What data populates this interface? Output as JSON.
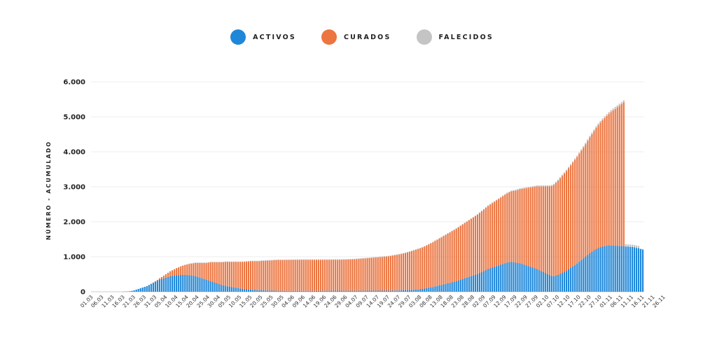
{
  "chart_data": {
    "type": "bar",
    "stacked": true,
    "ylabel": "NÚMERO - ACUMULADO",
    "ylim": [
      0,
      6000
    ],
    "yticks": [
      "0",
      "1.000",
      "2.000",
      "3.000",
      "4.000",
      "5.000",
      "6.000"
    ],
    "grid": true,
    "legend_position": "top-center",
    "xticks": [
      "01.03",
      "06.03",
      "11.03",
      "16.03",
      "21.03",
      "26.03",
      "31.03",
      "05.04",
      "10.04",
      "15.04",
      "20.04",
      "25.04",
      "30.04",
      "05.05",
      "10.05",
      "15.05",
      "20.05",
      "25.05",
      "30.05",
      "04.06",
      "09.06",
      "14.06",
      "19.06",
      "24.06",
      "29.06",
      "04.07",
      "09.07",
      "14.07",
      "19.07",
      "24.07",
      "29.07",
      "03.08",
      "08.08",
      "13.08",
      "18.08",
      "23.08",
      "28.08",
      "02.09",
      "07.09",
      "12.09",
      "17.09",
      "22.09",
      "27.09",
      "02.10",
      "07.10",
      "12.10",
      "17.10",
      "22.10",
      "27.10",
      "01.11",
      "06.11",
      "11.11",
      "16.11",
      "21.11",
      "26.11"
    ],
    "series": [
      {
        "name": "ACTIVOS",
        "color": "#1f87d8",
        "values": [
          0,
          0,
          0,
          0,
          0,
          0,
          0,
          0,
          0,
          0,
          0,
          0,
          0,
          0,
          0,
          3,
          5,
          8,
          15,
          25,
          40,
          60,
          80,
          100,
          120,
          140,
          160,
          190,
          220,
          250,
          280,
          310,
          340,
          360,
          380,
          400,
          420,
          440,
          450,
          460,
          470,
          475,
          480,
          482,
          480,
          478,
          470,
          460,
          450,
          440,
          420,
          400,
          380,
          360,
          340,
          320,
          300,
          280,
          260,
          240,
          220,
          200,
          185,
          170,
          155,
          140,
          130,
          120,
          110,
          100,
          90,
          80,
          75,
          70,
          65,
          60,
          55,
          50,
          45,
          42,
          40,
          38,
          36,
          34,
          32,
          30,
          30,
          28,
          28,
          26,
          26,
          25,
          25,
          24,
          24,
          24,
          24,
          24,
          25,
          25,
          25,
          25,
          25,
          26,
          26,
          26,
          26,
          26,
          27,
          27,
          27,
          27,
          27,
          28,
          28,
          28,
          28,
          28,
          28,
          28,
          28,
          28,
          28,
          28,
          28,
          28,
          28,
          28,
          28,
          28,
          28,
          29,
          29,
          29,
          29,
          30,
          30,
          30,
          31,
          31,
          32,
          32,
          33,
          34,
          35,
          36,
          38,
          40,
          42,
          45,
          48,
          52,
          56,
          60,
          65,
          70,
          80,
          90,
          100,
          110,
          120,
          135,
          150,
          165,
          180,
          195,
          210,
          225,
          240,
          255,
          270,
          285,
          300,
          320,
          340,
          360,
          380,
          400,
          420,
          440,
          460,
          480,
          500,
          530,
          560,
          590,
          620,
          650,
          670,
          690,
          710,
          730,
          750,
          770,
          790,
          810,
          830,
          840,
          850,
          840,
          830,
          820,
          810,
          790,
          770,
          750,
          730,
          710,
          690,
          670,
          650,
          620,
          590,
          560,
          530,
          500,
          470,
          450,
          440,
          460,
          480,
          510,
          540,
          570,
          600,
          640,
          680,
          720,
          760,
          800,
          850,
          900,
          950,
          1000,
          1050,
          1100,
          1140,
          1180,
          1220,
          1250,
          1270,
          1290,
          1300,
          1310,
          1320,
          1325,
          1320,
          1315,
          1310,
          1305,
          1300,
          1300,
          1295,
          1290,
          1285,
          1280,
          1270,
          1255,
          1240,
          1225,
          1210
        ]
      },
      {
        "name": "CURADOS",
        "color": "#ec7540",
        "values": [
          0,
          0,
          0,
          0,
          0,
          0,
          0,
          0,
          0,
          0,
          0,
          0,
          0,
          0,
          0,
          0,
          0,
          0,
          0,
          0,
          0,
          0,
          0,
          0,
          0,
          0,
          2,
          4,
          8,
          12,
          20,
          30,
          45,
          60,
          80,
          100,
          120,
          140,
          160,
          180,
          200,
          220,
          240,
          260,
          280,
          300,
          320,
          340,
          360,
          380,
          400,
          420,
          440,
          460,
          480,
          510,
          540,
          560,
          580,
          600,
          620,
          640,
          660,
          680,
          700,
          710,
          720,
          730,
          740,
          750,
          760,
          770,
          780,
          790,
          800,
          810,
          815,
          820,
          825,
          830,
          840,
          845,
          850,
          855,
          860,
          865,
          870,
          875,
          880,
          880,
          880,
          882,
          882,
          884,
          884,
          885,
          885,
          885,
          886,
          886,
          886,
          886,
          886,
          886,
          886,
          886,
          886,
          886,
          886,
          886,
          886,
          886,
          886,
          886,
          886,
          887,
          887,
          887,
          888,
          889,
          890,
          892,
          895,
          898,
          900,
          905,
          910,
          915,
          920,
          925,
          930,
          935,
          940,
          945,
          950,
          955,
          960,
          965,
          970,
          975,
          980,
          990,
          1000,
          1010,
          1020,
          1030,
          1040,
          1050,
          1065,
          1080,
          1095,
          1110,
          1125,
          1140,
          1155,
          1170,
          1185,
          1200,
          1220,
          1240,
          1260,
          1280,
          1300,
          1320,
          1340,
          1360,
          1380,
          1400,
          1420,
          1440,
          1460,
          1480,
          1500,
          1520,
          1540,
          1560,
          1580,
          1600,
          1620,
          1640,
          1660,
          1680,
          1700,
          1720,
          1740,
          1760,
          1780,
          1800,
          1820,
          1840,
          1860,
          1880,
          1900,
          1920,
          1940,
          1960,
          1980,
          2000,
          2020,
          2040,
          2060,
          2090,
          2120,
          2150,
          2180,
          2210,
          2240,
          2270,
          2300,
          2330,
          2360,
          2390,
          2420,
          2450,
          2480,
          2510,
          2540,
          2570,
          2610,
          2650,
          2690,
          2730,
          2770,
          2810,
          2850,
          2890,
          2930,
          2970,
          3010,
          3050,
          3090,
          3130,
          3170,
          3210,
          3260,
          3310,
          3360,
          3410,
          3460,
          3510,
          3560,
          3610,
          3660,
          3710,
          3760,
          3810,
          3860,
          3910,
          3960,
          4010,
          4060,
          4110
        ]
      },
      {
        "name": "FALECIDOS",
        "color": "#c4c4c4",
        "values": [
          0,
          0,
          0,
          0,
          0,
          0,
          0,
          0,
          0,
          0,
          0,
          0,
          0,
          0,
          0,
          0,
          0,
          0,
          0,
          0,
          0,
          0,
          0,
          0,
          0,
          0,
          0,
          0,
          0,
          0,
          0,
          1,
          2,
          3,
          4,
          5,
          6,
          7,
          8,
          9,
          10,
          11,
          12,
          13,
          14,
          15,
          15,
          15,
          15,
          15,
          15,
          15,
          15,
          15,
          15,
          15,
          15,
          15,
          15,
          15,
          15,
          15,
          15,
          15,
          15,
          15,
          15,
          15,
          15,
          15,
          15,
          15,
          15,
          15,
          15,
          15,
          15,
          15,
          15,
          15,
          15,
          15,
          15,
          15,
          15,
          15,
          15,
          15,
          15,
          15,
          15,
          15,
          15,
          15,
          15,
          15,
          15,
          15,
          15,
          15,
          15,
          15,
          15,
          15,
          15,
          15,
          15,
          15,
          15,
          15,
          15,
          15,
          15,
          15,
          15,
          15,
          15,
          15,
          15,
          15,
          15,
          15,
          15,
          15,
          15,
          15,
          15,
          15,
          15,
          15,
          15,
          15,
          15,
          15,
          15,
          15,
          15,
          15,
          15,
          15,
          15,
          15,
          15,
          15,
          15,
          15,
          15,
          15,
          15,
          15,
          15,
          15,
          15,
          15,
          15,
          15,
          15,
          15,
          15,
          15,
          15,
          15,
          15,
          15,
          15,
          15,
          15,
          15,
          15,
          15,
          15,
          15,
          16,
          16,
          16,
          16,
          16,
          16,
          17,
          17,
          17,
          17,
          18,
          18,
          18,
          18,
          19,
          19,
          19,
          20,
          20,
          20,
          21,
          21,
          21,
          22,
          22,
          22,
          23,
          23,
          24,
          24,
          25,
          25,
          26,
          26,
          27,
          27,
          28,
          28,
          29,
          29,
          30,
          30,
          31,
          31,
          32,
          32,
          33,
          33,
          34,
          35,
          35,
          36,
          37,
          38,
          38,
          39,
          40,
          41,
          42,
          43,
          44,
          45,
          46,
          47,
          48,
          49,
          50,
          51,
          52,
          53,
          54,
          55,
          56,
          57,
          58,
          59,
          60,
          61,
          62,
          63,
          64,
          65,
          66,
          67,
          68,
          69,
          70
        ]
      }
    ]
  }
}
